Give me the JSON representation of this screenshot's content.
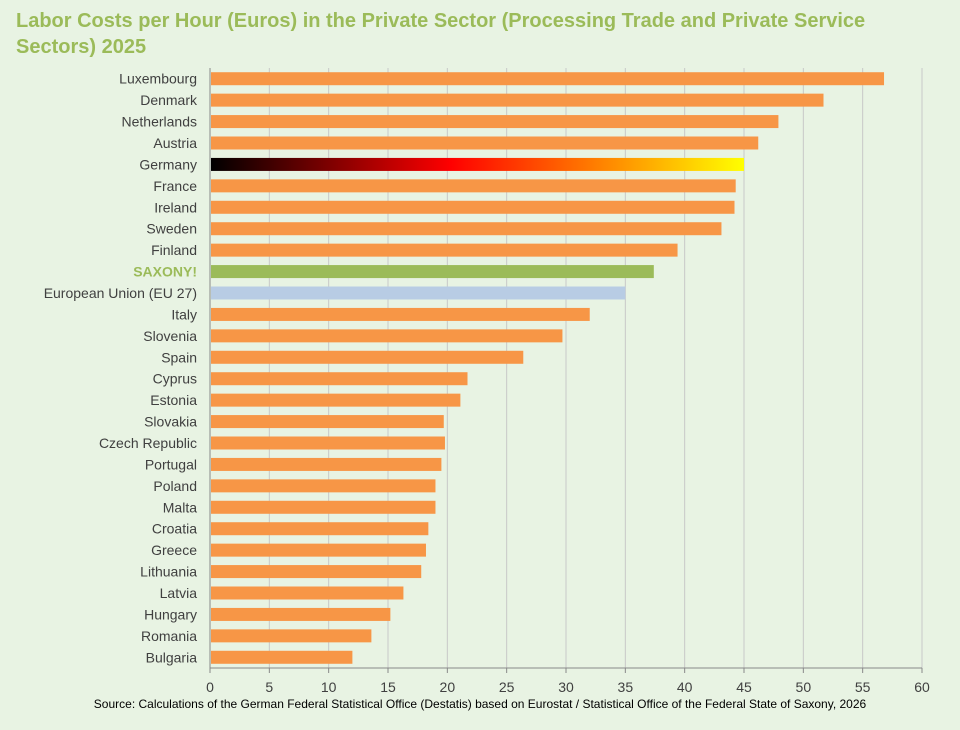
{
  "chart_data": {
    "type": "bar",
    "orientation": "horizontal",
    "title": "Labor Costs per Hour (Euros) in the Private Sector (Processing Trade and Private Service Sectors) 2025",
    "source": "Source: Calculations of the German Federal Statistical Office (Destatis) based on Eurostat / Statistical Office of the Federal State of Saxony, 2026",
    "xlim": [
      0,
      60
    ],
    "xticks": [
      0,
      5,
      10,
      15,
      20,
      25,
      30,
      35,
      40,
      45,
      50,
      55,
      60
    ],
    "grid": true,
    "colors": {
      "default": "#f79646",
      "saxony": "#9bbb59",
      "eu": "#b8cce4",
      "germany_gradient": [
        "#000000",
        "#ff0000",
        "#ffff00"
      ]
    },
    "categories": [
      "Luxembourg",
      "Denmark",
      "Netherlands",
      "Austria",
      "Germany",
      "France",
      "Ireland",
      "Sweden",
      "Finland",
      "SAXONY!",
      "European Union (EU 27)",
      "Italy",
      "Slovenia",
      "Spain",
      "Cyprus",
      "Estonia",
      "Slovakia",
      "Czech Republic",
      "Portugal",
      "Poland",
      "Malta",
      "Croatia",
      "Greece",
      "Lithuania",
      "Latvia",
      "Hungary",
      "Romania",
      "Bulgaria"
    ],
    "values": [
      56.8,
      51.7,
      47.9,
      46.2,
      45.0,
      44.3,
      44.2,
      43.1,
      39.4,
      37.4,
      35.0,
      32.0,
      29.7,
      26.4,
      21.7,
      21.1,
      19.7,
      19.8,
      19.5,
      19.0,
      19.0,
      18.4,
      18.2,
      17.8,
      16.3,
      15.2,
      13.6,
      12.0
    ]
  }
}
